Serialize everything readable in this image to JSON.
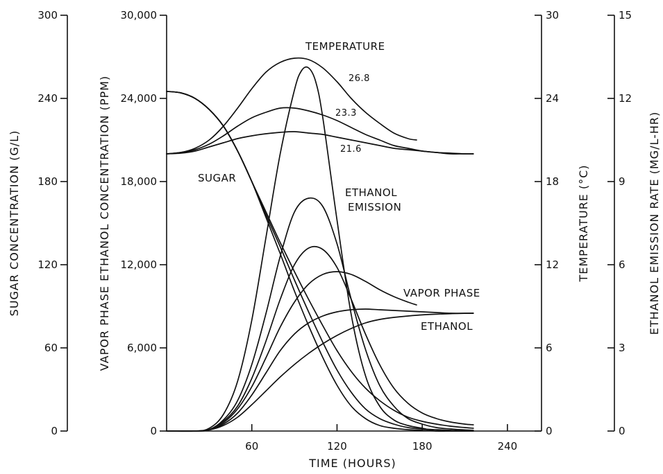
{
  "chart_data": {
    "type": "line",
    "xlabel": "TIME (HOURS)",
    "xlim": [
      0,
      264
    ],
    "x_ticks": [
      "60",
      "120",
      "180",
      "240"
    ],
    "axes": {
      "sugar": {
        "label": "SUGAR CONCENTRATION (G/L)",
        "ylim": [
          0,
          300
        ],
        "ticks": [
          "0",
          "60",
          "120",
          "180",
          "240",
          "300"
        ]
      },
      "vapor": {
        "label": "VAPOR PHASE ETHANOL CONCENTRATION (PPM)",
        "ylim": [
          0,
          30000
        ],
        "ticks": [
          "0",
          "6,000",
          "12,000",
          "18,000",
          "24,000",
          "30,000"
        ]
      },
      "temperature": {
        "label": "TEMPERATURE (°C)",
        "ylim": [
          0,
          30
        ],
        "ticks": [
          "0",
          "6",
          "12",
          "18",
          "24",
          "30"
        ]
      },
      "emission": {
        "label": "ETHANOL EMISSION RATE (MG/L-HR)",
        "ylim": [
          0,
          15
        ],
        "ticks": [
          "0",
          "3",
          "6",
          "9",
          "12",
          "15"
        ]
      }
    },
    "annotations": {
      "temperature": "TEMPERATURE",
      "t268": "26.8",
      "t233": "23.3",
      "t216": "21.6",
      "sugar": "SUGAR",
      "emission_1": "ETHANOL",
      "emission_2": "EMISSION",
      "vapor_1": "VAPOR PHASE",
      "vapor_2": "ETHANOL"
    },
    "series": [
      {
        "group": "temperature",
        "axis": "temperature",
        "x": [
          0,
          10,
          20,
          30,
          40,
          50,
          60,
          70,
          80,
          90,
          100,
          110,
          120,
          130,
          140,
          150,
          160,
          170,
          176
        ],
        "values": [
          20.0,
          20.1,
          20.4,
          21.0,
          22.0,
          23.3,
          24.7,
          25.9,
          26.6,
          26.9,
          26.8,
          26.2,
          25.2,
          24.0,
          23.0,
          22.2,
          21.5,
          21.1,
          21.0
        ]
      },
      {
        "group": "temperature",
        "axis": "temperature",
        "x": [
          0,
          10,
          20,
          30,
          40,
          50,
          60,
          70,
          80,
          90,
          100,
          110,
          120,
          130,
          140,
          150,
          160,
          170,
          180,
          190,
          200,
          210,
          216
        ],
        "values": [
          20.0,
          20.1,
          20.3,
          20.7,
          21.3,
          22.0,
          22.6,
          23.0,
          23.3,
          23.3,
          23.1,
          22.8,
          22.4,
          21.9,
          21.4,
          21.0,
          20.6,
          20.4,
          20.2,
          20.1,
          20.0,
          20.0,
          20.0
        ]
      },
      {
        "group": "temperature",
        "axis": "temperature",
        "x": [
          0,
          10,
          20,
          30,
          40,
          50,
          60,
          70,
          80,
          90,
          100,
          110,
          120,
          130,
          140,
          150,
          160,
          170,
          180,
          190,
          200,
          210,
          216
        ],
        "values": [
          20.0,
          20.05,
          20.2,
          20.5,
          20.8,
          21.1,
          21.3,
          21.45,
          21.55,
          21.6,
          21.5,
          21.4,
          21.2,
          21.0,
          20.8,
          20.6,
          20.4,
          20.3,
          20.2,
          20.1,
          20.05,
          20.0,
          20.0
        ]
      },
      {
        "group": "sugar",
        "axis": "sugar",
        "x": [
          0,
          10,
          20,
          30,
          40,
          50,
          60,
          70,
          80,
          90,
          100,
          110,
          120,
          130,
          140,
          150,
          160,
          170,
          180,
          190,
          200,
          210,
          216
        ],
        "values": [
          245,
          244,
          240,
          232,
          220,
          202,
          180,
          154,
          128,
          101,
          76,
          53,
          33,
          18,
          9,
          4,
          2,
          1,
          0.5,
          0,
          0,
          0,
          0
        ]
      },
      {
        "group": "sugar",
        "axis": "sugar",
        "x": [
          0,
          10,
          20,
          30,
          40,
          50,
          60,
          70,
          80,
          90,
          100,
          110,
          120,
          130,
          140,
          150,
          160,
          170,
          180,
          190,
          200,
          210,
          216
        ],
        "values": [
          245,
          244,
          240,
          232,
          220,
          202,
          180,
          156,
          133,
          109,
          86,
          64,
          44,
          28,
          16,
          9,
          5,
          2.5,
          1.5,
          1,
          0.5,
          0,
          0
        ]
      },
      {
        "group": "sugar",
        "axis": "sugar",
        "x": [
          0,
          10,
          20,
          30,
          40,
          50,
          60,
          70,
          80,
          90,
          100,
          110,
          120,
          130,
          140,
          150,
          160,
          170,
          180,
          190,
          200,
          210,
          216
        ],
        "values": [
          245,
          244,
          240,
          232,
          220,
          202,
          180,
          158,
          136,
          115,
          95,
          76,
          58,
          43,
          31,
          22,
          15,
          10,
          7,
          5,
          3.5,
          2.5,
          2
        ]
      },
      {
        "group": "emission",
        "axis": "emission",
        "x": [
          0,
          20,
          30,
          40,
          50,
          60,
          70,
          80,
          90,
          95,
          100,
          105,
          110,
          120,
          130,
          140,
          150,
          160,
          170,
          180,
          190,
          200,
          210,
          216
        ],
        "values": [
          0,
          0,
          0.1,
          0.6,
          1.8,
          4.0,
          7.0,
          10.0,
          12.3,
          13.0,
          13.1,
          12.6,
          11.3,
          7.6,
          4.2,
          2.0,
          0.9,
          0.4,
          0.2,
          0.1,
          0,
          0,
          0,
          0
        ]
      },
      {
        "group": "vapor",
        "axis": "vapor",
        "x": [
          0,
          20,
          30,
          40,
          50,
          60,
          70,
          80,
          90,
          100,
          110,
          120,
          130,
          140,
          150,
          160,
          170,
          180,
          190,
          200,
          210,
          216
        ],
        "values": [
          0,
          0,
          100,
          800,
          2200,
          4800,
          8500,
          12600,
          15800,
          16800,
          16200,
          13500,
          9500,
          5900,
          3300,
          1800,
          900,
          500,
          250,
          150,
          80,
          50
        ]
      },
      {
        "group": "vapor",
        "axis": "vapor",
        "x": [
          0,
          20,
          30,
          40,
          50,
          60,
          70,
          80,
          90,
          100,
          110,
          120,
          130,
          140,
          150,
          160,
          170,
          180,
          190,
          200,
          210,
          216
        ],
        "values": [
          0,
          0,
          100,
          700,
          1800,
          3800,
          6500,
          9500,
          12000,
          13200,
          13100,
          11800,
          9500,
          7000,
          4800,
          3100,
          2000,
          1300,
          900,
          650,
          500,
          450
        ]
      },
      {
        "group": "vapor",
        "axis": "vapor",
        "x": [
          0,
          20,
          30,
          40,
          50,
          60,
          70,
          80,
          90,
          100,
          110,
          120,
          130,
          140,
          150,
          160,
          170,
          176
        ],
        "values": [
          0,
          0,
          100,
          600,
          1600,
          3200,
          5300,
          7500,
          9300,
          10600,
          11300,
          11500,
          11300,
          10800,
          10200,
          9700,
          9300,
          9100
        ]
      },
      {
        "group": "vapor",
        "axis": "vapor",
        "x": [
          0,
          20,
          30,
          40,
          50,
          60,
          70,
          80,
          90,
          100,
          110,
          120,
          130,
          140,
          150,
          160,
          170,
          180,
          190,
          200,
          210,
          216
        ],
        "values": [
          0,
          0,
          100,
          500,
          1300,
          2600,
          4200,
          5800,
          7000,
          7800,
          8300,
          8600,
          8750,
          8800,
          8750,
          8700,
          8650,
          8600,
          8550,
          8500,
          8500,
          8500
        ]
      },
      {
        "group": "vapor",
        "axis": "vapor",
        "x": [
          0,
          20,
          30,
          40,
          50,
          60,
          70,
          80,
          90,
          100,
          110,
          120,
          130,
          140,
          150,
          160,
          170,
          180,
          190,
          200,
          210,
          216
        ],
        "values": [
          0,
          0,
          80,
          400,
          1000,
          1900,
          2900,
          3900,
          4800,
          5600,
          6300,
          6900,
          7400,
          7800,
          8050,
          8200,
          8300,
          8380,
          8430,
          8470,
          8490,
          8500
        ]
      }
    ]
  }
}
